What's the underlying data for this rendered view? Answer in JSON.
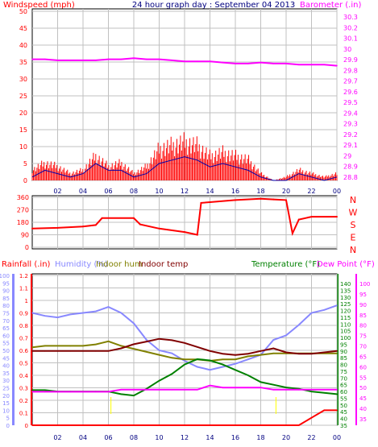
{
  "header": {
    "title": "24 hour graph day : September 04 2013",
    "left_label": "Windspeed (mph)",
    "right_label": "Barometer (.in)"
  },
  "colors": {
    "windspeed": "#ff0000",
    "gust_line": "#0000aa",
    "barometer": "#ff00ff",
    "direction": "#ff0000",
    "rainfall": "#ff0000",
    "humidity": "#8888ff",
    "indoor_hum": "#808000",
    "indoor_temp": "#800000",
    "temperature": "#008000",
    "dew_point": "#ff00ff",
    "solar_marks": "#ffff00",
    "grid": "#c0c0c0",
    "frame": "#000000"
  },
  "x_axis": {
    "ticks": [
      "02",
      "04",
      "06",
      "08",
      "10",
      "12",
      "14",
      "16",
      "18",
      "20",
      "22",
      "00"
    ]
  },
  "panel_wind": {
    "left_ticks": [
      "50",
      "45",
      "40",
      "35",
      "30",
      "25",
      "20",
      "15",
      "10",
      "5",
      "0"
    ],
    "right_ticks": [
      "30.3",
      "30.2",
      "30.1",
      "30",
      "29.9",
      "29.8",
      "29.7",
      "29.6",
      "29.5",
      "29.4",
      "29.3",
      "29.2",
      "29.1",
      "29",
      "28.9",
      "28.8"
    ]
  },
  "panel_direction": {
    "left_ticks": [
      "360",
      "270",
      "180",
      "90",
      "0"
    ],
    "right_letters": [
      "N",
      "W",
      "S",
      "E",
      "N"
    ]
  },
  "panel_temp": {
    "legend": {
      "rainfall": "Rainfall (.in)",
      "humidity": "Humidity (%)",
      "indoor_hum": "Indoor hum",
      "indoor_temp": "Indoor temp",
      "temperature": "Temperature (°F)",
      "dew_point": "Dew Point (°F)"
    },
    "humidity_ticks": [
      "100",
      "95",
      "90",
      "85",
      "80",
      "75",
      "70",
      "65",
      "60",
      "55",
      "50",
      "45",
      "40",
      "35",
      "30",
      "25",
      "20",
      "15",
      "10",
      "5",
      "0"
    ],
    "rain_ticks": [
      "1.2",
      "1.1",
      "1",
      "0.9",
      "0.8",
      "0.7",
      "0.6",
      "0.5",
      "0.4",
      "0.3",
      "0.2",
      "0.1",
      "0"
    ],
    "temp_ticks": [
      "140",
      "135",
      "130",
      "125",
      "120",
      "115",
      "110",
      "105",
      "100",
      "95",
      "90",
      "85",
      "80",
      "75",
      "70",
      "65",
      "60",
      "55",
      "50",
      "45",
      "40",
      "35"
    ],
    "dew_ticks": [
      "100",
      "95",
      "90",
      "85",
      "80",
      "75",
      "70",
      "65",
      "60",
      "55",
      "50",
      "45",
      "40",
      "35"
    ]
  },
  "chart_data": [
    {
      "type": "line",
      "title": "24 hour graph day : September 04 2013",
      "x": [
        "00",
        "01",
        "02",
        "03",
        "04",
        "05",
        "06",
        "07",
        "08",
        "09",
        "10",
        "11",
        "12",
        "13",
        "14",
        "15",
        "16",
        "17",
        "18",
        "19",
        "20",
        "21",
        "22",
        "23",
        "24"
      ],
      "ylabel_left": "Windspeed (mph)",
      "ylabel_right": "Barometer (.in)",
      "ylim_left": [
        0,
        50
      ],
      "ylim_right": [
        28.75,
        30.35
      ],
      "series": [
        {
          "name": "Windspeed (mph)",
          "axis": "left",
          "values": [
            3,
            5,
            4,
            2,
            3,
            7,
            4,
            5,
            2,
            4,
            9,
            10,
            11,
            10,
            7,
            8,
            7,
            6,
            2,
            0,
            1,
            3,
            2,
            1,
            2
          ]
        },
        {
          "axis": "left",
          "values": [
            1,
            3,
            2,
            1,
            2,
            5,
            3,
            3,
            1,
            2,
            5,
            6,
            7,
            6,
            4,
            5,
            4,
            3,
            1,
            0,
            0,
            2,
            1,
            0,
            1
          ]
        },
        {
          "name": "Barometer (.in)",
          "axis": "right",
          "values": [
            29.88,
            29.88,
            29.87,
            29.87,
            29.87,
            29.87,
            29.88,
            29.88,
            29.89,
            29.88,
            29.88,
            29.87,
            29.86,
            29.86,
            29.86,
            29.85,
            29.84,
            29.84,
            29.85,
            29.84,
            29.84,
            29.83,
            29.83,
            29.83,
            29.82
          ]
        }
      ]
    },
    {
      "type": "line",
      "x": [
        "00",
        "02",
        "04",
        "05",
        "05.5",
        "08",
        "08.5",
        "10",
        "12",
        "13",
        "13.3",
        "14",
        "16",
        "18",
        "19",
        "20",
        "20.5",
        "21",
        "22",
        "24"
      ],
      "right_labels": [
        "N",
        "W",
        "S",
        "E",
        "N"
      ],
      "ylim": [
        0,
        360
      ],
      "series": [
        {
          "values": [
            135,
            140,
            150,
            160,
            210,
            210,
            165,
            135,
            110,
            90,
            320,
            325,
            340,
            350,
            345,
            340,
            100,
            200,
            220,
            220
          ]
        }
      ]
    },
    {
      "type": "line",
      "x": [
        "00",
        "01",
        "02",
        "03",
        "04",
        "05",
        "06",
        "07",
        "08",
        "09",
        "10",
        "11",
        "12",
        "13",
        "14",
        "15",
        "16",
        "17",
        "18",
        "19",
        "20",
        "21",
        "22",
        "23",
        "24"
      ],
      "ylabel_left": "Humidity (%)",
      "ylabel_right": "Temperature (°F)",
      "ylim_humidity": [
        0,
        100
      ],
      "ylim_rain": [
        0,
        1.2
      ],
      "ylim_temp": [
        35,
        140
      ],
      "series": [
        {
          "name": "Humidity (%)",
          "axis": "humidity",
          "values": [
            75,
            73,
            72,
            74,
            75,
            76,
            79,
            75,
            68,
            57,
            50,
            48,
            43,
            39,
            37,
            39,
            41,
            44,
            47,
            57,
            60,
            67,
            75,
            77,
            80
          ]
        },
        {
          "name": "Indoor hum",
          "axis": "humidity",
          "values": [
            52,
            53,
            53,
            53,
            53,
            54,
            56,
            53,
            51,
            49,
            47,
            45,
            44,
            44,
            43,
            44,
            44,
            46,
            47,
            48,
            48,
            48,
            48,
            48,
            48
          ]
        },
        {
          "name": "Indoor temp",
          "axis": "temp",
          "values": [
            90,
            90,
            90,
            90,
            90,
            90,
            90,
            92,
            95,
            97,
            99,
            98,
            96,
            93,
            90,
            88,
            87,
            88,
            90,
            92,
            89,
            88,
            88,
            89,
            90
          ]
        },
        {
          "name": "Temperature (°F)",
          "axis": "temp",
          "values": [
            61,
            61,
            60,
            60,
            60,
            60,
            60,
            58,
            57,
            62,
            68,
            73,
            80,
            84,
            83,
            80,
            76,
            72,
            67,
            65,
            63,
            62,
            60,
            59,
            58
          ]
        },
        {
          "name": "Dew Point (°F)",
          "axis": "dew",
          "values": [
            48,
            48,
            48,
            48,
            48,
            48,
            48,
            49,
            49,
            49,
            49,
            49,
            49,
            49,
            51,
            50,
            50,
            50,
            50,
            49,
            49,
            49,
            49,
            49,
            49
          ]
        },
        {
          "name": "Rainfall (.in)",
          "axis": "rain",
          "values": [
            0,
            0,
            0,
            0,
            0,
            0,
            0,
            0,
            0,
            0,
            0,
            0,
            0,
            0,
            0,
            0,
            0,
            0,
            0,
            0,
            0,
            0,
            0.06,
            0.12,
            0.12
          ]
        }
      ]
    }
  ]
}
